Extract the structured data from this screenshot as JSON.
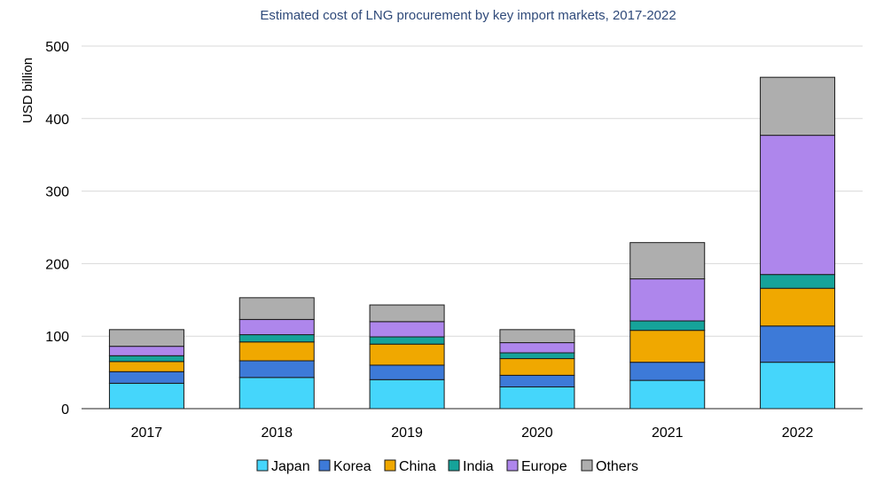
{
  "chart_data": {
    "type": "bar",
    "stacked": true,
    "title": "Estimated cost of LNG procurement by key import markets, 2017-2022",
    "xlabel": "",
    "ylabel": "USD billion",
    "ylim": [
      0,
      500
    ],
    "yticks": [
      0,
      100,
      200,
      300,
      400,
      500
    ],
    "grid": true,
    "legend_position": "bottom",
    "categories": [
      "2017",
      "2018",
      "2019",
      "2020",
      "2021",
      "2022"
    ],
    "series": [
      {
        "name": "Japan",
        "color": "#45d6fb",
        "values": [
          35,
          43,
          40,
          30,
          39,
          64
        ]
      },
      {
        "name": "Korea",
        "color": "#3d7ad8",
        "values": [
          16,
          23,
          20,
          16,
          25,
          50
        ]
      },
      {
        "name": "China",
        "color": "#f0a800",
        "values": [
          14,
          26,
          29,
          23,
          44,
          52
        ]
      },
      {
        "name": "India",
        "color": "#16a39a",
        "values": [
          8,
          10,
          10,
          8,
          13,
          19
        ]
      },
      {
        "name": "Europe",
        "color": "#ae86ec",
        "values": [
          13,
          21,
          21,
          14,
          58,
          192
        ]
      },
      {
        "name": "Others",
        "color": "#aeaeae",
        "values": [
          23,
          30,
          23,
          18,
          50,
          80
        ]
      }
    ]
  }
}
